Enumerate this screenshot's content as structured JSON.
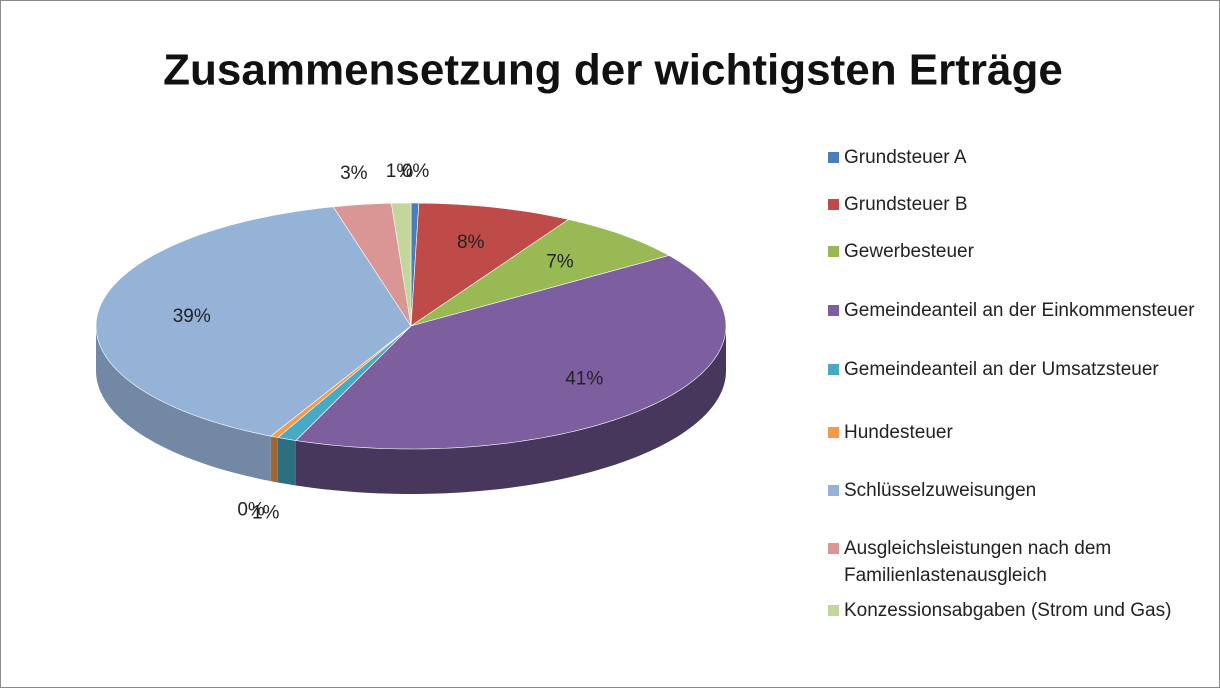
{
  "chart_data": {
    "type": "pie3d",
    "title": "Zusammensetzung der wichtigsten Erträge",
    "categories": [
      "Grundsteuer A",
      "Grundsteuer B",
      "Gewerbesteuer",
      "Gemeindeanteil an der Einkommensteuer",
      "Gemeindeanteil an der Umsatzsteuer",
      "Hundesteuer",
      "Schlüsselzuweisungen",
      "Ausgleichsleistungen nach dem Familienlastenausgleich",
      "Konzessionsabgaben (Strom und Gas)"
    ],
    "values": [
      0.4,
      8,
      7,
      41,
      1,
      0.4,
      39,
      3,
      1
    ],
    "value_labels": [
      "0%",
      "8%",
      "7%",
      "41%",
      "1%",
      "0%",
      "39%",
      "3%",
      "1%"
    ],
    "colors": [
      "#4a7ebb",
      "#be4b48",
      "#98b954",
      "#7d5fa0",
      "#46aac5",
      "#f59a4a",
      "#95b3d7",
      "#d99694",
      "#c3d69b"
    ],
    "legend": "right"
  }
}
